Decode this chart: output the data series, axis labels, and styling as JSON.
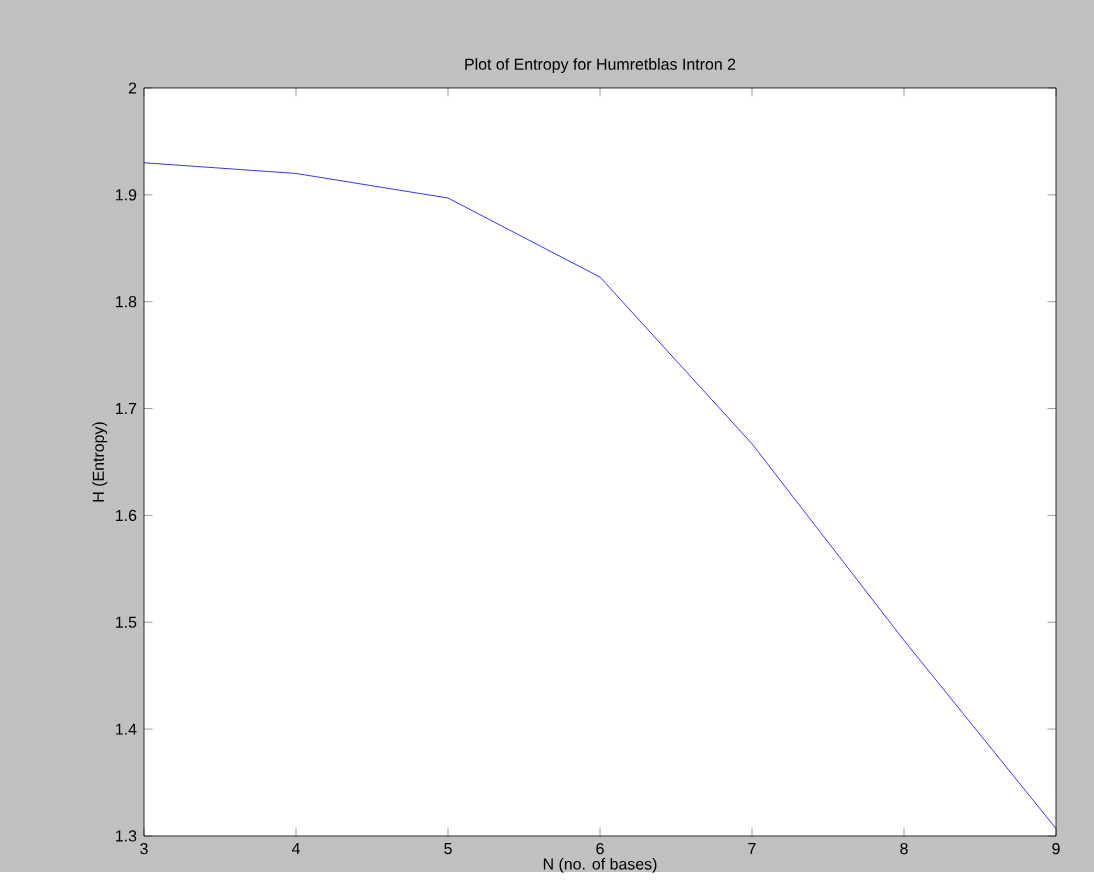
{
  "chart_data": {
    "type": "line",
    "title": "Plot of Entropy for Humretblas Intron 2",
    "xlabel": "N (no. of bases)",
    "ylabel": "H (Entropy)",
    "x": [
      3,
      4,
      5,
      6,
      7,
      8,
      9
    ],
    "series": [
      {
        "color": "#0000ff",
        "values": [
          1.93,
          1.92,
          1.897,
          1.823,
          1.667,
          1.483,
          1.307
        ]
      }
    ],
    "xlim": [
      3,
      9
    ],
    "xticks": [
      3,
      4,
      5,
      6,
      7,
      8,
      9
    ],
    "ylim": [
      1.3,
      2
    ],
    "yticks": [
      1.3,
      1.4,
      1.5,
      1.6,
      1.7,
      1.8,
      1.9,
      2
    ],
    "marker": "none",
    "line_style": "solid"
  }
}
